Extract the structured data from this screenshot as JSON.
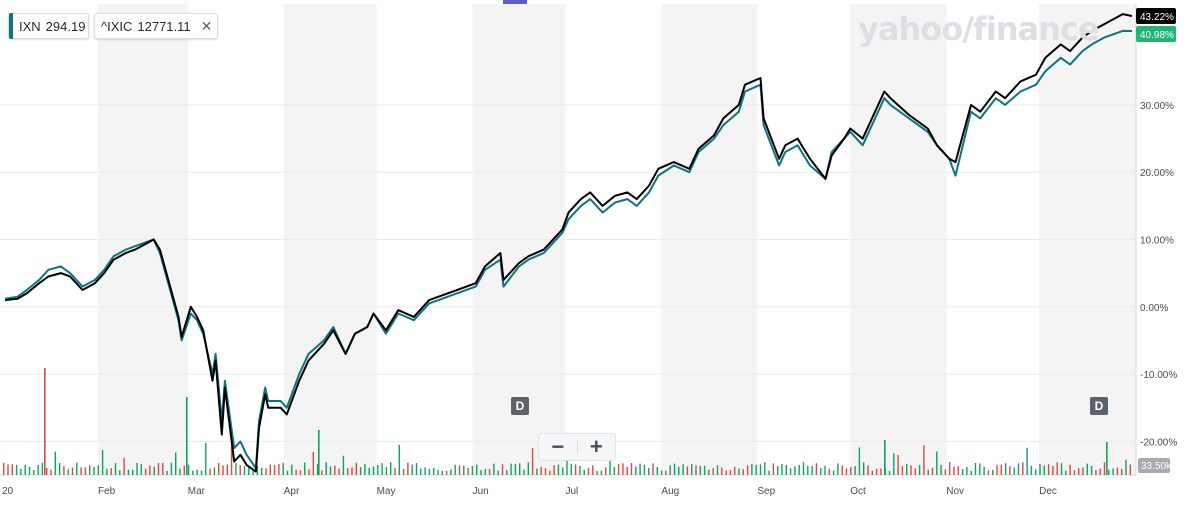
{
  "watermark": "yahoo/finance",
  "legend": [
    {
      "symbol": "IXN",
      "value": "294.19",
      "color": "#0d7480"
    },
    {
      "symbol": "^IXIC",
      "value": "12771.11",
      "color": "#000000",
      "close": "✕"
    }
  ],
  "zoom": {
    "minus": "−",
    "plus": "+"
  },
  "event_badge": "D",
  "price_labels": {
    "ixic": "43.22%",
    "ixn": "40.98%"
  },
  "volume_label": "33.50k",
  "colors": {
    "ixn": "#0d7480",
    "ixic": "#000000",
    "up": "#0ca55c",
    "down": "#e0473e",
    "band": "#f4f4f4",
    "ixn_tag": "#21b573"
  },
  "chart_data": {
    "type": "line",
    "title": "",
    "x_tick_labels": [
      "20",
      "Feb",
      "Mar",
      "Apr",
      "May",
      "Jun",
      "Jul",
      "Aug",
      "Sep",
      "Oct",
      "Nov",
      "Dec"
    ],
    "y_axis": {
      "min": -25,
      "max": 45,
      "ticks": [
        30,
        20,
        10,
        0,
        -10,
        -20
      ],
      "tick_labels": [
        "30.00%",
        "20.00%",
        "10.00%",
        "0.00%",
        "-10.00%",
        "-20.00%"
      ]
    },
    "series": [
      {
        "name": "IXN",
        "points": [
          [
            "Jan 2",
            1.2
          ],
          [
            "Jan 6",
            1.5
          ],
          [
            "Jan 9",
            2.5
          ],
          [
            "Jan 13",
            4.0
          ],
          [
            "Jan 16",
            5.5
          ],
          [
            "Jan 20",
            6.0
          ],
          [
            "Jan 23",
            5.0
          ],
          [
            "Jan 27",
            3.0
          ],
          [
            "Jan 31",
            4.0
          ],
          [
            "Feb 3",
            5.5
          ],
          [
            "Feb 6",
            7.5
          ],
          [
            "Feb 10",
            8.5
          ],
          [
            "Feb 13",
            9.0
          ],
          [
            "Feb 19",
            10.0
          ],
          [
            "Feb 21",
            8.0
          ],
          [
            "Feb 24",
            3.0
          ],
          [
            "Feb 27",
            -2.0
          ],
          [
            "Feb 28",
            -5.0
          ],
          [
            "Mar 2",
            -1.0
          ],
          [
            "Mar 4",
            -2.0
          ],
          [
            "Mar 6",
            -4.0
          ],
          [
            "Mar 9",
            -10.0
          ],
          [
            "Mar 10",
            -7.0
          ],
          [
            "Mar 12",
            -17.0
          ],
          [
            "Mar 13",
            -11.0
          ],
          [
            "Mar 16",
            -21.0
          ],
          [
            "Mar 18",
            -20.0
          ],
          [
            "Mar 20",
            -22.0
          ],
          [
            "Mar 23",
            -24.0
          ],
          [
            "Mar 24",
            -17.0
          ],
          [
            "Mar 26",
            -12.0
          ],
          [
            "Mar 27",
            -14.0
          ],
          [
            "Mar 31",
            -14.0
          ],
          [
            "Apr 2",
            -15.0
          ],
          [
            "Apr 6",
            -10.0
          ],
          [
            "Apr 9",
            -7.0
          ],
          [
            "Apr 14",
            -5.0
          ],
          [
            "Apr 17",
            -3.0
          ],
          [
            "Apr 21",
            -7.0
          ],
          [
            "Apr 24",
            -4.0
          ],
          [
            "Apr 28",
            -3.0
          ],
          [
            "Apr 30",
            -1.0
          ],
          [
            "May 4",
            -4.0
          ],
          [
            "May 8",
            -1.0
          ],
          [
            "May 13",
            -2.0
          ],
          [
            "May 18",
            0.5
          ],
          [
            "May 21",
            1.0
          ],
          [
            "May 27",
            2.0
          ],
          [
            "Jun 2",
            3.0
          ],
          [
            "Jun 5",
            5.5
          ],
          [
            "Jun 10",
            7.0
          ],
          [
            "Jun 11",
            3.0
          ],
          [
            "Jun 16",
            6.0
          ],
          [
            "Jun 19",
            7.0
          ],
          [
            "Jun 24",
            8.0
          ],
          [
            "Jun 30",
            11.0
          ],
          [
            "Jul 2",
            13.0
          ],
          [
            "Jul 6",
            15.0
          ],
          [
            "Jul 9",
            16.0
          ],
          [
            "Jul 13",
            14.0
          ],
          [
            "Jul 17",
            15.5
          ],
          [
            "Jul 21",
            16.0
          ],
          [
            "Jul 24",
            15.0
          ],
          [
            "Jul 28",
            17.0
          ],
          [
            "Jul 31",
            19.5
          ],
          [
            "Aug 5",
            21.0
          ],
          [
            "Aug 10",
            20.0
          ],
          [
            "Aug 13",
            23.0
          ],
          [
            "Aug 18",
            25.0
          ],
          [
            "Aug 21",
            27.0
          ],
          [
            "Aug 26",
            29.0
          ],
          [
            "Aug 28",
            32.0
          ],
          [
            "Sep 2",
            33.0
          ],
          [
            "Sep 3",
            27.0
          ],
          [
            "Sep 8",
            21.0
          ],
          [
            "Sep 10",
            23.0
          ],
          [
            "Sep 14",
            24.0
          ],
          [
            "Sep 18",
            21.0
          ],
          [
            "Sep 23",
            19.0
          ],
          [
            "Sep 25",
            23.0
          ],
          [
            "Sep 29",
            25.0
          ],
          [
            "Oct 1",
            26.0
          ],
          [
            "Oct 5",
            24.0
          ],
          [
            "Oct 12",
            31.0
          ],
          [
            "Oct 14",
            30.0
          ],
          [
            "Oct 20",
            28.0
          ],
          [
            "Oct 26",
            26.0
          ],
          [
            "Oct 29",
            24.0
          ],
          [
            "Nov 2",
            22.0
          ],
          [
            "Nov 4",
            19.5
          ],
          [
            "Nov 9",
            29.0
          ],
          [
            "Nov 12",
            28.0
          ],
          [
            "Nov 17",
            31.0
          ],
          [
            "Nov 20",
            30.0
          ],
          [
            "Nov 25",
            32.0
          ],
          [
            "Nov 30",
            33.0
          ],
          [
            "Dec 3",
            35.0
          ],
          [
            "Dec 8",
            37.0
          ],
          [
            "Dec 11",
            36.0
          ],
          [
            "Dec 15",
            38.0
          ],
          [
            "Dec 18",
            39.0
          ],
          [
            "Dec 22",
            40.0
          ],
          [
            "Dec 28",
            41.0
          ],
          [
            "Dec 31",
            40.98
          ]
        ]
      },
      {
        "name": "^IXIC",
        "points": [
          [
            "Jan 2",
            1.0
          ],
          [
            "Jan 6",
            1.2
          ],
          [
            "Jan 9",
            2.0
          ],
          [
            "Jan 13",
            3.5
          ],
          [
            "Jan 16",
            4.5
          ],
          [
            "Jan 20",
            5.0
          ],
          [
            "Jan 23",
            4.5
          ],
          [
            "Jan 27",
            2.5
          ],
          [
            "Jan 31",
            3.5
          ],
          [
            "Feb 3",
            5.0
          ],
          [
            "Feb 6",
            7.0
          ],
          [
            "Feb 10",
            8.0
          ],
          [
            "Feb 13",
            8.5
          ],
          [
            "Feb 19",
            10.0
          ],
          [
            "Feb 21",
            8.5
          ],
          [
            "Feb 24",
            3.5
          ],
          [
            "Feb 27",
            -1.5
          ],
          [
            "Feb 28",
            -4.5
          ],
          [
            "Mar 2",
            0.0
          ],
          [
            "Mar 4",
            -1.5
          ],
          [
            "Mar 6",
            -3.5
          ],
          [
            "Mar 9",
            -11.0
          ],
          [
            "Mar 10",
            -8.0
          ],
          [
            "Mar 12",
            -19.0
          ],
          [
            "Mar 13",
            -12.0
          ],
          [
            "Mar 16",
            -23.0
          ],
          [
            "Mar 18",
            -22.0
          ],
          [
            "Mar 20",
            -23.5
          ],
          [
            "Mar 23",
            -24.5
          ],
          [
            "Mar 24",
            -18.0
          ],
          [
            "Mar 26",
            -13.0
          ],
          [
            "Mar 27",
            -15.0
          ],
          [
            "Mar 31",
            -15.0
          ],
          [
            "Apr 2",
            -16.0
          ],
          [
            "Apr 6",
            -11.0
          ],
          [
            "Apr 9",
            -8.0
          ],
          [
            "Apr 14",
            -5.5
          ],
          [
            "Apr 17",
            -3.5
          ],
          [
            "Apr 21",
            -7.0
          ],
          [
            "Apr 24",
            -4.0
          ],
          [
            "Apr 28",
            -3.0
          ],
          [
            "Apr 30",
            -1.0
          ],
          [
            "May 4",
            -3.5
          ],
          [
            "May 8",
            -0.5
          ],
          [
            "May 13",
            -1.5
          ],
          [
            "May 18",
            1.0
          ],
          [
            "May 21",
            1.5
          ],
          [
            "May 27",
            2.5
          ],
          [
            "Jun 2",
            3.5
          ],
          [
            "Jun 5",
            6.0
          ],
          [
            "Jun 10",
            8.0
          ],
          [
            "Jun 11",
            4.0
          ],
          [
            "Jun 16",
            6.5
          ],
          [
            "Jun 19",
            7.5
          ],
          [
            "Jun 24",
            8.5
          ],
          [
            "Jun 30",
            11.5
          ],
          [
            "Jul 2",
            14.0
          ],
          [
            "Jul 6",
            16.0
          ],
          [
            "Jul 9",
            17.0
          ],
          [
            "Jul 13",
            15.0
          ],
          [
            "Jul 17",
            16.5
          ],
          [
            "Jul 21",
            17.0
          ],
          [
            "Jul 24",
            16.0
          ],
          [
            "Jul 28",
            18.0
          ],
          [
            "Jul 31",
            20.5
          ],
          [
            "Aug 5",
            21.5
          ],
          [
            "Aug 10",
            20.5
          ],
          [
            "Aug 13",
            23.5
          ],
          [
            "Aug 18",
            25.5
          ],
          [
            "Aug 21",
            28.0
          ],
          [
            "Aug 26",
            30.0
          ],
          [
            "Aug 28",
            33.0
          ],
          [
            "Sep 2",
            34.0
          ],
          [
            "Sep 3",
            28.0
          ],
          [
            "Sep 8",
            22.0
          ],
          [
            "Sep 10",
            24.0
          ],
          [
            "Sep 14",
            25.0
          ],
          [
            "Sep 18",
            22.0
          ],
          [
            "Sep 23",
            19.0
          ],
          [
            "Sep 25",
            22.5
          ],
          [
            "Sep 29",
            25.0
          ],
          [
            "Oct 1",
            26.5
          ],
          [
            "Oct 5",
            25.0
          ],
          [
            "Oct 12",
            32.0
          ],
          [
            "Oct 14",
            31.0
          ],
          [
            "Oct 20",
            28.5
          ],
          [
            "Oct 26",
            26.5
          ],
          [
            "Oct 29",
            24.0
          ],
          [
            "Nov 2",
            22.0
          ],
          [
            "Nov 4",
            21.5
          ],
          [
            "Nov 9",
            30.0
          ],
          [
            "Nov 12",
            29.0
          ],
          [
            "Nov 17",
            32.0
          ],
          [
            "Nov 20",
            31.0
          ],
          [
            "Nov 25",
            33.5
          ],
          [
            "Nov 30",
            34.5
          ],
          [
            "Dec 3",
            37.0
          ],
          [
            "Dec 8",
            39.0
          ],
          [
            "Dec 11",
            38.0
          ],
          [
            "Dec 15",
            40.0
          ],
          [
            "Dec 18",
            41.0
          ],
          [
            "Dec 22",
            42.0
          ],
          [
            "Dec 28",
            43.5
          ],
          [
            "Dec 31",
            43.22
          ]
        ]
      }
    ],
    "legend_position": "top-left",
    "grid": true
  }
}
